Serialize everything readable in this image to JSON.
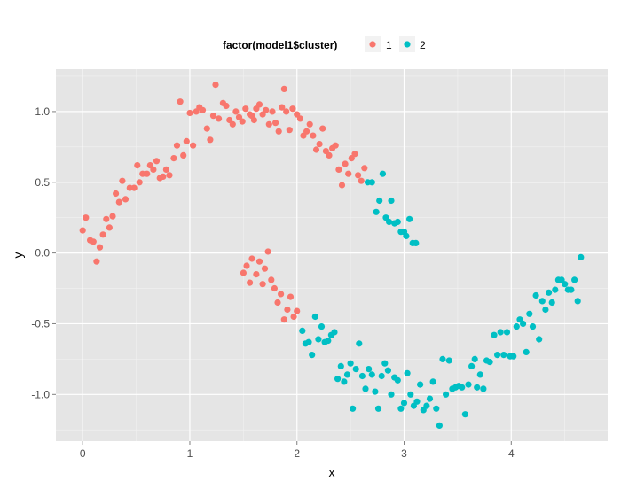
{
  "chart_data": {
    "type": "scatter",
    "title": "",
    "xlabel": "x",
    "ylabel": "y",
    "xlim": [
      -0.25,
      4.9
    ],
    "ylim": [
      -1.33,
      1.3
    ],
    "x_ticks": [
      0,
      1,
      2,
      3,
      4
    ],
    "y_ticks": [
      -1.0,
      -0.5,
      0.0,
      0.5,
      1.0
    ],
    "x_tick_labels": [
      "0",
      "1",
      "2",
      "3",
      "4"
    ],
    "y_tick_labels": [
      "-1.0",
      "-0.5",
      "0.0",
      "0.5",
      "1.0"
    ],
    "grid": true,
    "legend": {
      "title": "factor(model1$cluster)",
      "position": "top",
      "entries": [
        "1",
        "2"
      ]
    },
    "series": [
      {
        "name": "1",
        "color": "#F8766D",
        "points": [
          [
            0.0,
            0.16
          ],
          [
            0.03,
            0.25
          ],
          [
            0.07,
            0.09
          ],
          [
            0.1,
            0.08
          ],
          [
            0.13,
            -0.06
          ],
          [
            0.16,
            0.04
          ],
          [
            0.19,
            0.13
          ],
          [
            0.22,
            0.24
          ],
          [
            0.25,
            0.18
          ],
          [
            0.28,
            0.26
          ],
          [
            0.31,
            0.42
          ],
          [
            0.34,
            0.36
          ],
          [
            0.37,
            0.51
          ],
          [
            0.4,
            0.38
          ],
          [
            0.44,
            0.46
          ],
          [
            0.48,
            0.46
          ],
          [
            0.51,
            0.62
          ],
          [
            0.53,
            0.5
          ],
          [
            0.56,
            0.56
          ],
          [
            0.6,
            0.56
          ],
          [
            0.63,
            0.62
          ],
          [
            0.66,
            0.59
          ],
          [
            0.69,
            0.65
          ],
          [
            0.72,
            0.53
          ],
          [
            0.75,
            0.54
          ],
          [
            0.78,
            0.59
          ],
          [
            0.81,
            0.55
          ],
          [
            0.85,
            0.67
          ],
          [
            0.88,
            0.76
          ],
          [
            0.91,
            1.07
          ],
          [
            0.94,
            0.69
          ],
          [
            0.97,
            0.79
          ],
          [
            1.0,
            0.99
          ],
          [
            1.03,
            0.76
          ],
          [
            1.06,
            1.0
          ],
          [
            1.09,
            1.03
          ],
          [
            1.12,
            1.01
          ],
          [
            1.16,
            0.88
          ],
          [
            1.19,
            0.8
          ],
          [
            1.22,
            0.97
          ],
          [
            1.24,
            1.19
          ],
          [
            1.27,
            0.95
          ],
          [
            1.31,
            1.06
          ],
          [
            1.34,
            1.04
          ],
          [
            1.37,
            0.94
          ],
          [
            1.4,
            0.91
          ],
          [
            1.43,
            1.0
          ],
          [
            1.46,
            0.96
          ],
          [
            1.49,
            0.93
          ],
          [
            1.52,
            1.02
          ],
          [
            1.56,
            0.98
          ],
          [
            1.58,
            0.97
          ],
          [
            1.6,
            0.94
          ],
          [
            1.62,
            1.02
          ],
          [
            1.65,
            1.05
          ],
          [
            1.68,
            0.98
          ],
          [
            1.71,
            1.01
          ],
          [
            1.74,
            0.91
          ],
          [
            1.77,
            1.0
          ],
          [
            1.8,
            0.92
          ],
          [
            1.83,
            0.86
          ],
          [
            1.86,
            1.03
          ],
          [
            1.88,
            1.16
          ],
          [
            1.9,
            1.0
          ],
          [
            1.93,
            0.87
          ],
          [
            1.96,
            1.02
          ],
          [
            2.0,
            0.98
          ],
          [
            2.03,
            0.95
          ],
          [
            2.06,
            0.83
          ],
          [
            2.09,
            0.86
          ],
          [
            2.12,
            0.91
          ],
          [
            2.15,
            0.83
          ],
          [
            2.18,
            0.73
          ],
          [
            2.21,
            0.77
          ],
          [
            2.24,
            0.88
          ],
          [
            2.27,
            0.72
          ],
          [
            2.3,
            0.69
          ],
          [
            2.33,
            0.74
          ],
          [
            2.36,
            0.76
          ],
          [
            2.39,
            0.59
          ],
          [
            2.42,
            0.48
          ],
          [
            2.45,
            0.63
          ],
          [
            2.48,
            0.56
          ],
          [
            2.51,
            0.67
          ],
          [
            2.54,
            0.7
          ],
          [
            2.57,
            0.55
          ],
          [
            2.6,
            0.51
          ],
          [
            2.63,
            0.6
          ],
          [
            1.5,
            -0.14
          ],
          [
            1.53,
            -0.09
          ],
          [
            1.56,
            -0.21
          ],
          [
            1.58,
            -0.04
          ],
          [
            1.62,
            -0.15
          ],
          [
            1.65,
            -0.06
          ],
          [
            1.68,
            -0.22
          ],
          [
            1.7,
            -0.11
          ],
          [
            1.73,
            0.01
          ],
          [
            1.76,
            -0.19
          ],
          [
            1.79,
            -0.25
          ],
          [
            1.82,
            -0.35
          ],
          [
            1.85,
            -0.29
          ],
          [
            1.88,
            -0.47
          ],
          [
            1.91,
            -0.4
          ],
          [
            1.94,
            -0.31
          ],
          [
            1.97,
            -0.45
          ],
          [
            2.0,
            -0.41
          ]
        ]
      },
      {
        "name": "2",
        "color": "#00BFC4",
        "points": [
          [
            2.66,
            0.5
          ],
          [
            2.7,
            0.5
          ],
          [
            2.74,
            0.29
          ],
          [
            2.77,
            0.37
          ],
          [
            2.8,
            0.56
          ],
          [
            2.83,
            0.25
          ],
          [
            2.86,
            0.22
          ],
          [
            2.88,
            0.37
          ],
          [
            2.91,
            0.21
          ],
          [
            2.94,
            0.22
          ],
          [
            2.97,
            0.15
          ],
          [
            3.0,
            0.15
          ],
          [
            3.02,
            0.12
          ],
          [
            3.05,
            0.24
          ],
          [
            3.08,
            0.07
          ],
          [
            3.11,
            0.07
          ],
          [
            2.05,
            -0.55
          ],
          [
            2.08,
            -0.64
          ],
          [
            2.11,
            -0.63
          ],
          [
            2.14,
            -0.72
          ],
          [
            2.17,
            -0.45
          ],
          [
            2.2,
            -0.61
          ],
          [
            2.23,
            -0.52
          ],
          [
            2.26,
            -0.63
          ],
          [
            2.29,
            -0.62
          ],
          [
            2.32,
            -0.58
          ],
          [
            2.35,
            -0.56
          ],
          [
            2.38,
            -0.89
          ],
          [
            2.41,
            -0.8
          ],
          [
            2.44,
            -0.91
          ],
          [
            2.47,
            -0.86
          ],
          [
            2.5,
            -0.78
          ],
          [
            2.52,
            -1.1
          ],
          [
            2.55,
            -0.82
          ],
          [
            2.58,
            -0.64
          ],
          [
            2.61,
            -0.87
          ],
          [
            2.64,
            -0.96
          ],
          [
            2.67,
            -0.82
          ],
          [
            2.7,
            -0.86
          ],
          [
            2.73,
            -0.98
          ],
          [
            2.76,
            -1.1
          ],
          [
            2.79,
            -0.87
          ],
          [
            2.82,
            -0.78
          ],
          [
            2.85,
            -0.83
          ],
          [
            2.88,
            -1.0
          ],
          [
            2.91,
            -0.88
          ],
          [
            2.94,
            -0.9
          ],
          [
            2.97,
            -1.1
          ],
          [
            3.0,
            -1.06
          ],
          [
            3.03,
            -0.85
          ],
          [
            3.06,
            -1.0
          ],
          [
            3.09,
            -1.08
          ],
          [
            3.12,
            -1.05
          ],
          [
            3.15,
            -0.93
          ],
          [
            3.18,
            -1.11
          ],
          [
            3.21,
            -1.08
          ],
          [
            3.24,
            -1.03
          ],
          [
            3.27,
            -0.91
          ],
          [
            3.3,
            -1.1
          ],
          [
            3.33,
            -1.22
          ],
          [
            3.36,
            -0.75
          ],
          [
            3.39,
            -1.0
          ],
          [
            3.42,
            -0.76
          ],
          [
            3.45,
            -0.96
          ],
          [
            3.48,
            -0.95
          ],
          [
            3.51,
            -0.94
          ],
          [
            3.54,
            -0.95
          ],
          [
            3.57,
            -1.14
          ],
          [
            3.6,
            -0.93
          ],
          [
            3.63,
            -0.8
          ],
          [
            3.66,
            -0.75
          ],
          [
            3.68,
            -0.95
          ],
          [
            3.71,
            -0.86
          ],
          [
            3.74,
            -0.96
          ],
          [
            3.77,
            -0.76
          ],
          [
            3.8,
            -0.77
          ],
          [
            3.84,
            -0.58
          ],
          [
            3.87,
            -0.72
          ],
          [
            3.9,
            -0.56
          ],
          [
            3.93,
            -0.72
          ],
          [
            3.96,
            -0.56
          ],
          [
            3.99,
            -0.73
          ],
          [
            4.02,
            -0.73
          ],
          [
            4.05,
            -0.52
          ],
          [
            4.08,
            -0.47
          ],
          [
            4.11,
            -0.5
          ],
          [
            4.14,
            -0.7
          ],
          [
            4.17,
            -0.43
          ],
          [
            4.2,
            -0.52
          ],
          [
            4.23,
            -0.3
          ],
          [
            4.26,
            -0.61
          ],
          [
            4.29,
            -0.34
          ],
          [
            4.32,
            -0.4
          ],
          [
            4.35,
            -0.28
          ],
          [
            4.38,
            -0.35
          ],
          [
            4.41,
            -0.26
          ],
          [
            4.44,
            -0.19
          ],
          [
            4.47,
            -0.19
          ],
          [
            4.5,
            -0.22
          ],
          [
            4.53,
            -0.26
          ],
          [
            4.56,
            -0.26
          ],
          [
            4.59,
            -0.19
          ],
          [
            4.62,
            -0.34
          ],
          [
            4.65,
            -0.03
          ]
        ]
      }
    ]
  }
}
